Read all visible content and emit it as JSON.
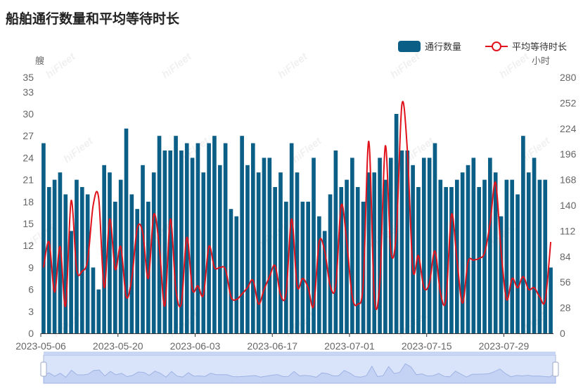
{
  "title": "船舶通行数量和平均等待时长",
  "watermark": "hiFleet",
  "colors": {
    "bar": "#0b5e86",
    "line": "#e0121c",
    "axis_text": "#666666",
    "grid": "#e6e6e6",
    "zoom_fill": "#d9e4fb",
    "zoom_border": "#aab8d8"
  },
  "chart_data": {
    "type": "bar",
    "title": "船舶通行数量和平均等待时长",
    "left_unit": "艘",
    "right_unit": "小时",
    "left_axis": {
      "ylim": [
        0,
        35
      ],
      "ticks": [
        0,
        3,
        6,
        9,
        12,
        15,
        18,
        21,
        24,
        27,
        30,
        33,
        35
      ]
    },
    "right_axis": {
      "ylim": [
        0,
        280
      ],
      "ticks": [
        0,
        28,
        56,
        84,
        112,
        140,
        168,
        196,
        224,
        252,
        280
      ]
    },
    "x_tick_labels": [
      "2023-05-06",
      "2023-05-20",
      "2023-06-03",
      "2023-06-17",
      "2023-07-01",
      "2023-07-15",
      "2023-07-29"
    ],
    "x_tick_every": 14,
    "grid": false,
    "legend_position": "top-right",
    "series": [
      {
        "name": "通行数量",
        "type": "bar",
        "axis": "left",
        "values": [
          26,
          20,
          21,
          22,
          19,
          14,
          21,
          20,
          19,
          9,
          6,
          23,
          22,
          18,
          21,
          28,
          19,
          17,
          23,
          18,
          22,
          27,
          25,
          25,
          27,
          25,
          26,
          24,
          26,
          22,
          26,
          27,
          23,
          26,
          17,
          16,
          27,
          23,
          26,
          22,
          24,
          24,
          20,
          22,
          18,
          26,
          22,
          18,
          18,
          24,
          16,
          14,
          19,
          25,
          20,
          21,
          24,
          20,
          18,
          22,
          22,
          24,
          21,
          24,
          30,
          25,
          25,
          23,
          20,
          24,
          24,
          26,
          21,
          20,
          20,
          21,
          22,
          23,
          24,
          20,
          21,
          24,
          22,
          16,
          21,
          21,
          19,
          27,
          22,
          24,
          21,
          21,
          9
        ]
      },
      {
        "name": "平均等待时长",
        "type": "line",
        "axis": "right",
        "values": [
          72,
          100,
          45,
          95,
          30,
          145,
          70,
          68,
          80,
          140,
          148,
          50,
          125,
          70,
          95,
          40,
          60,
          115,
          110,
          60,
          130,
          95,
          30,
          125,
          48,
          33,
          105,
          48,
          52,
          42,
          95,
          72,
          72,
          70,
          40,
          37,
          43,
          50,
          58,
          32,
          48,
          62,
          74,
          42,
          44,
          125,
          52,
          60,
          50,
          30,
          100,
          90,
          52,
          52,
          140,
          100,
          40,
          32,
          55,
          210,
          40,
          55,
          205,
          90,
          110,
          250,
          200,
          70,
          85,
          50,
          55,
          90,
          44,
          37,
          130,
          80,
          33,
          78,
          80,
          82,
          88,
          120,
          165,
          90,
          37,
          60,
          50,
          62,
          48,
          50,
          40,
          36,
          100
        ]
      }
    ]
  }
}
